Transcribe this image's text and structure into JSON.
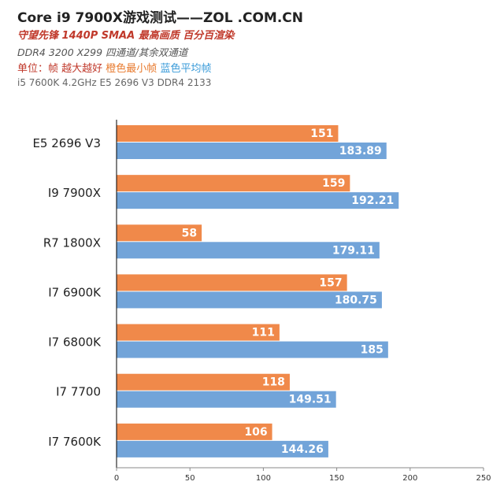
{
  "header": {
    "title": "Core i9 7900X游戏测试——ZOL .COM.CN",
    "subtitle": "守望先锋 1440P SMAA 最高画质 百分百渲染",
    "config": "DDR4 3200  X299 四通道/其余双通道",
    "unit_label": "单位：帧 越大越好",
    "legend_orange": "橙色最小帧",
    "legend_blue": "蓝色平均帧",
    "note": "i5 7600K 4.2GHz  E5 2696 V3  DDR4 2133"
  },
  "colors": {
    "min_fps": "#f0894a",
    "avg_fps": "#72a4d9",
    "axis": "#000000"
  },
  "chart_data": {
    "type": "bar",
    "orientation": "horizontal",
    "categories": [
      "E5 2696 V3",
      "I9 7900X",
      "R7 1800X",
      "I7 6900K",
      "I7 6800K",
      "I7 7700",
      "I7 7600K"
    ],
    "series": [
      {
        "name": "橙色最小帧",
        "values": [
          151,
          159,
          58,
          157,
          111,
          118,
          106
        ]
      },
      {
        "name": "蓝色平均帧",
        "values": [
          183.89,
          192.21,
          179.11,
          180.75,
          185,
          149.51,
          144.26
        ]
      }
    ],
    "value_labels": [
      [
        "151",
        "159",
        "58",
        "157",
        "111",
        "118",
        "106"
      ],
      [
        "183.89",
        "192.21",
        "179.11",
        "180.75",
        "185",
        "149.51",
        "144.26"
      ]
    ],
    "xticks": [
      "0",
      "50",
      "100",
      "150",
      "200",
      "250"
    ],
    "xlim": [
      0,
      250
    ],
    "grid": false,
    "legend": "in subtitle"
  }
}
